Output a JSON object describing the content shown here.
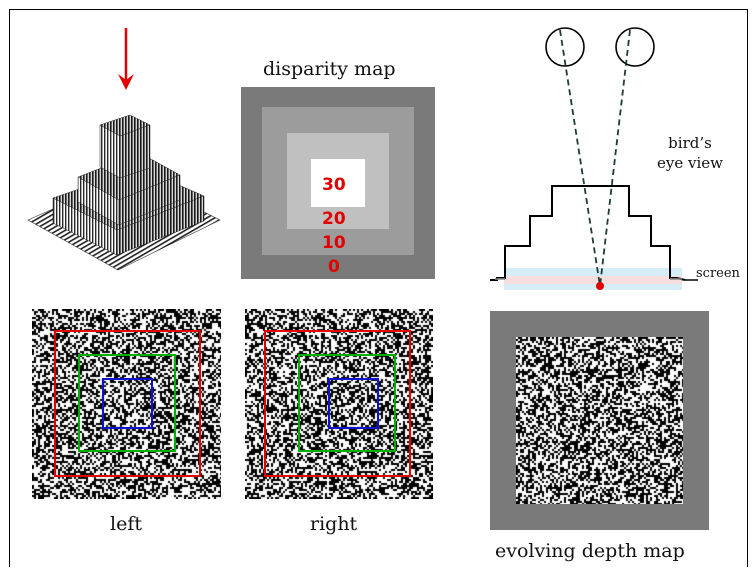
{
  "labels": {
    "disparity_title": "disparity map",
    "birds_eye": "bird’s eye view",
    "screen": "screen",
    "left": "left",
    "right": "right",
    "evolving": "evolving depth map"
  },
  "disparity_values": [
    "30",
    "20",
    "10",
    "0"
  ],
  "colors": {
    "arrow": "#e00000",
    "outer_square": "#e00000",
    "middle_square": "#00b000",
    "inner_square": "#1010d0",
    "gray_bg": "#7a7a7a"
  },
  "icons": {
    "top_arrow": "down-arrow-icon",
    "eyes": "eye-circle-icon"
  }
}
